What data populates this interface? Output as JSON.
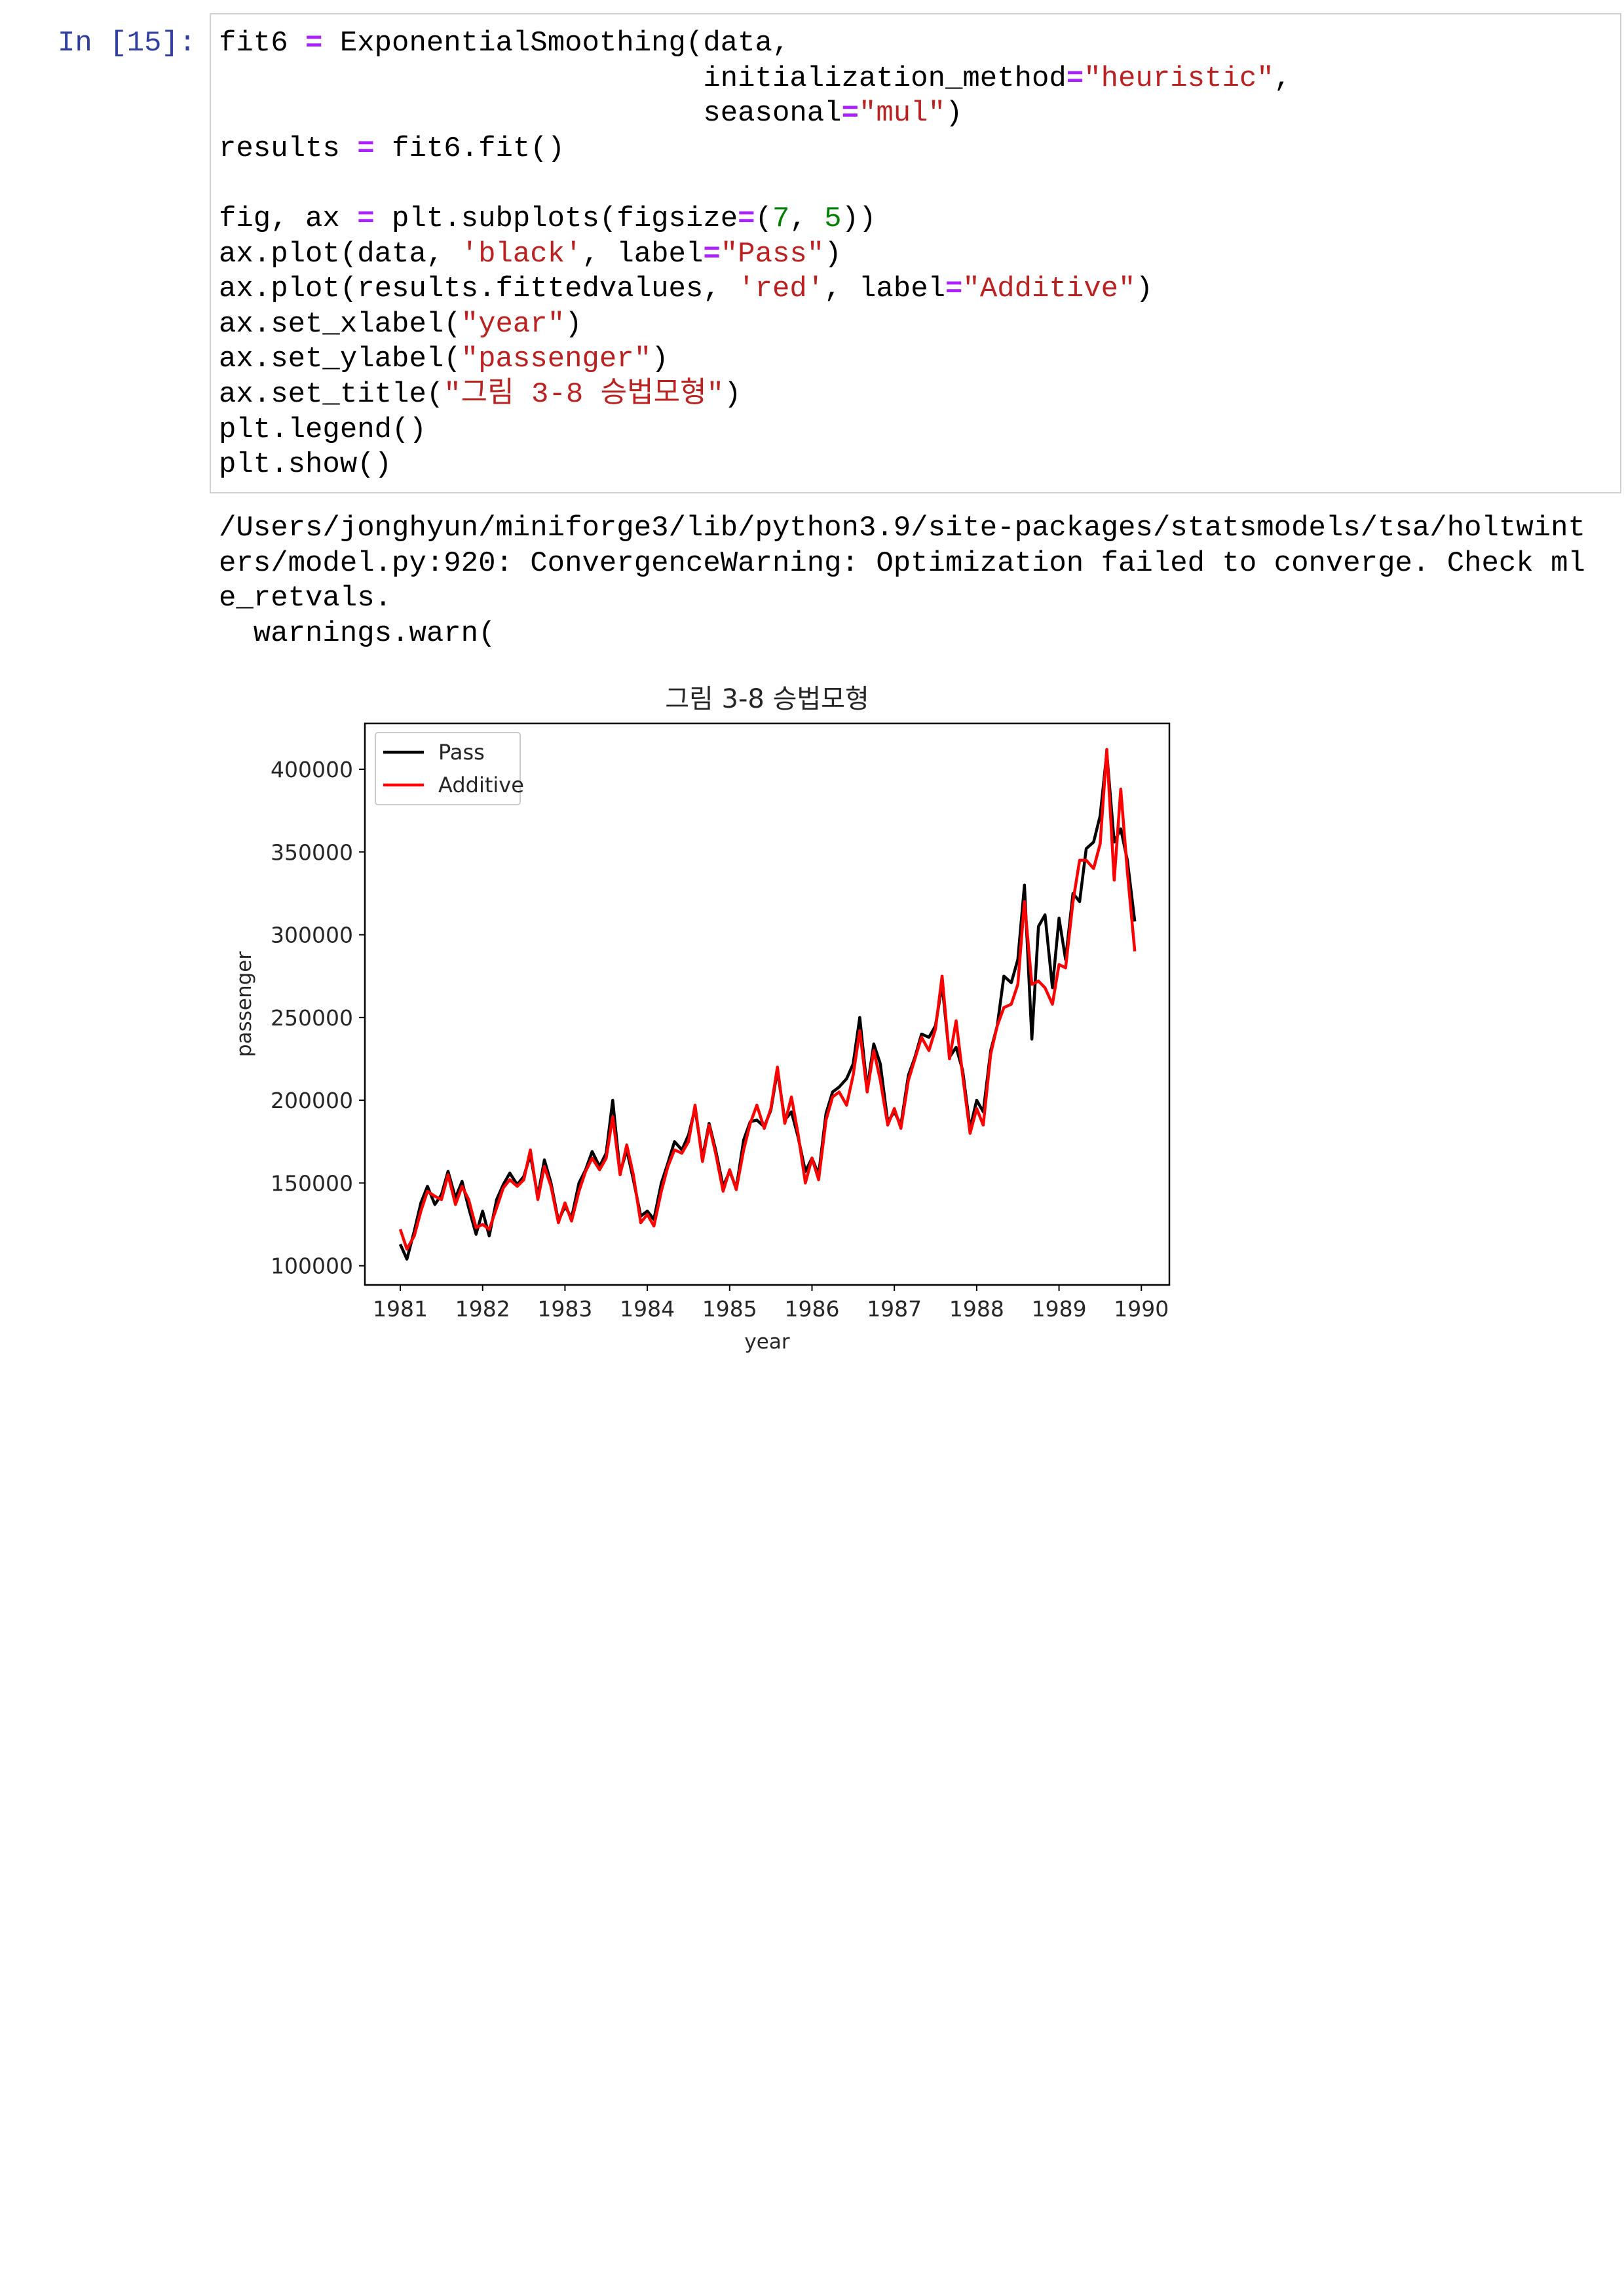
{
  "cell": {
    "prompt": "In [15]:",
    "lines": [
      [
        [
          "fit6 ",
          "#000000"
        ],
        [
          "=",
          "#aa22ff"
        ],
        [
          " ExponentialSmoothing(data,",
          "#000000"
        ]
      ],
      [
        [
          "                            initialization_method",
          "#000000"
        ],
        [
          "=",
          "#aa22ff"
        ],
        [
          "\"heuristic\"",
          "#ba2121"
        ],
        [
          ",",
          "#000000"
        ]
      ],
      [
        [
          "                            seasonal",
          "#000000"
        ],
        [
          "=",
          "#aa22ff"
        ],
        [
          "\"mul\"",
          "#ba2121"
        ],
        [
          ")",
          "#000000"
        ]
      ],
      [
        [
          "results ",
          "#000000"
        ],
        [
          "=",
          "#aa22ff"
        ],
        [
          " fit6.fit()",
          "#000000"
        ]
      ],
      [],
      [
        [
          "fig, ax ",
          "#000000"
        ],
        [
          "=",
          "#aa22ff"
        ],
        [
          " plt.subplots(figsize",
          "#000000"
        ],
        [
          "=",
          "#aa22ff"
        ],
        [
          "(",
          "#000000"
        ],
        [
          "7",
          "#008000"
        ],
        [
          ", ",
          "#000000"
        ],
        [
          "5",
          "#008000"
        ],
        [
          "))",
          "#000000"
        ]
      ],
      [
        [
          "ax.plot(data, ",
          "#000000"
        ],
        [
          "'black'",
          "#ba2121"
        ],
        [
          ", label",
          "#000000"
        ],
        [
          "=",
          "#aa22ff"
        ],
        [
          "\"Pass\"",
          "#ba2121"
        ],
        [
          ")",
          "#000000"
        ]
      ],
      [
        [
          "ax.plot(results.fittedvalues, ",
          "#000000"
        ],
        [
          "'red'",
          "#ba2121"
        ],
        [
          ", label",
          "#000000"
        ],
        [
          "=",
          "#aa22ff"
        ],
        [
          "\"Additive\"",
          "#ba2121"
        ],
        [
          ")",
          "#000000"
        ]
      ],
      [
        [
          "ax.set_xlabel(",
          "#000000"
        ],
        [
          "\"year\"",
          "#ba2121"
        ],
        [
          ")",
          "#000000"
        ]
      ],
      [
        [
          "ax.set_ylabel(",
          "#000000"
        ],
        [
          "\"passenger\"",
          "#ba2121"
        ],
        [
          ")",
          "#000000"
        ]
      ],
      [
        [
          "ax.set_title(",
          "#000000"
        ],
        [
          "\"그림 3-8 승법모형\"",
          "#ba2121"
        ],
        [
          ")",
          "#000000"
        ]
      ],
      [
        [
          "plt.legend()",
          "#000000"
        ]
      ],
      [
        [
          "plt.show()",
          "#000000"
        ]
      ]
    ]
  },
  "output": {
    "lines": [
      "/Users/jonghyun/miniforge3/lib/python3.9/site-packages/statsmodels/tsa/holtwint",
      "ers/model.py:920: ConvergenceWarning: Optimization failed to converge. Check ml",
      "e_retvals.",
      "  warnings.warn("
    ]
  },
  "chart_data": {
    "type": "line",
    "title": "그림 3-8 승법모형",
    "xlabel": "year",
    "ylabel": "passenger",
    "x": [
      1981,
      1981.08,
      1981.17,
      1981.25,
      1981.33,
      1981.42,
      1981.5,
      1981.58,
      1981.67,
      1981.75,
      1981.83,
      1981.92,
      1982,
      1982.08,
      1982.17,
      1982.25,
      1982.33,
      1982.42,
      1982.5,
      1982.58,
      1982.67,
      1982.75,
      1982.83,
      1982.92,
      1983,
      1983.08,
      1983.17,
      1983.25,
      1983.33,
      1983.42,
      1983.5,
      1983.58,
      1983.67,
      1983.75,
      1983.83,
      1983.92,
      1984,
      1984.08,
      1984.17,
      1984.25,
      1984.33,
      1984.42,
      1984.5,
      1984.58,
      1984.67,
      1984.75,
      1984.83,
      1984.92,
      1985,
      1985.08,
      1985.17,
      1985.25,
      1985.33,
      1985.42,
      1985.5,
      1985.58,
      1985.67,
      1985.75,
      1985.83,
      1985.92,
      1986,
      1986.08,
      1986.17,
      1986.25,
      1986.33,
      1986.42,
      1986.5,
      1986.58,
      1986.67,
      1986.75,
      1986.83,
      1986.92,
      1987,
      1987.08,
      1987.17,
      1987.25,
      1987.33,
      1987.42,
      1987.5,
      1987.58,
      1987.67,
      1987.75,
      1987.83,
      1987.92,
      1988,
      1988.08,
      1988.17,
      1988.25,
      1988.33,
      1988.42,
      1988.5,
      1988.58,
      1988.67,
      1988.75,
      1988.83,
      1988.92,
      1989,
      1989.08,
      1989.17,
      1989.25,
      1989.33,
      1989.42,
      1989.5,
      1989.58,
      1989.67,
      1989.75,
      1989.83,
      1989.92
    ],
    "series": [
      {
        "name": "Pass",
        "color": "#000000",
        "values": [
          113000,
          104000,
          121000,
          138000,
          148000,
          137000,
          143000,
          157000,
          141000,
          151000,
          135000,
          119000,
          133000,
          118000,
          140000,
          149000,
          156000,
          149000,
          154000,
          167000,
          142000,
          164000,
          150000,
          127000,
          136000,
          129000,
          150000,
          158000,
          169000,
          160000,
          168000,
          200000,
          156000,
          170000,
          152000,
          130000,
          133000,
          128000,
          150000,
          162000,
          175000,
          170000,
          179000,
          195000,
          165000,
          186000,
          170000,
          148000,
          157000,
          147000,
          176000,
          187000,
          188000,
          184000,
          194000,
          218000,
          188000,
          193000,
          178000,
          157000,
          165000,
          155000,
          192000,
          205000,
          208000,
          213000,
          222000,
          250000,
          207000,
          234000,
          222000,
          187000,
          193000,
          185000,
          215000,
          226000,
          240000,
          238000,
          245000,
          270000,
          226000,
          232000,
          218000,
          183000,
          200000,
          193000,
          230000,
          245000,
          275000,
          271000,
          285000,
          330000,
          237000,
          305000,
          312000,
          268000,
          310000,
          285000,
          325000,
          320000,
          352000,
          356000,
          372000,
          410000,
          356000,
          364000,
          345000,
          308000
        ]
      },
      {
        "name": "Additive",
        "color": "#ff0000",
        "values": [
          122000,
          110000,
          118000,
          133000,
          145000,
          142000,
          140000,
          155000,
          137000,
          148000,
          140000,
          123000,
          125000,
          122000,
          135000,
          147000,
          152000,
          148000,
          152000,
          170000,
          140000,
          160000,
          148000,
          126000,
          138000,
          127000,
          145000,
          157000,
          165000,
          158000,
          165000,
          190000,
          155000,
          173000,
          155000,
          126000,
          131000,
          124000,
          145000,
          160000,
          170000,
          168000,
          175000,
          197000,
          163000,
          185000,
          168000,
          145000,
          158000,
          146000,
          170000,
          186000,
          197000,
          183000,
          195000,
          220000,
          186000,
          202000,
          180000,
          150000,
          165000,
          152000,
          188000,
          202000,
          205000,
          197000,
          215000,
          242000,
          205000,
          230000,
          212000,
          185000,
          195000,
          183000,
          212000,
          225000,
          238000,
          230000,
          243000,
          275000,
          225000,
          248000,
          215000,
          180000,
          195000,
          185000,
          228000,
          245000,
          256000,
          258000,
          270000,
          320000,
          270000,
          272000,
          268000,
          258000,
          282000,
          280000,
          320000,
          345000,
          345000,
          340000,
          355000,
          412000,
          333000,
          388000,
          338000,
          290000
        ]
      }
    ],
    "xlim": [
      1980.57,
      1990.34
    ],
    "xticks": [
      1981,
      1982,
      1983,
      1984,
      1985,
      1986,
      1987,
      1988,
      1989,
      1990
    ],
    "ylim": [
      88400,
      427700
    ],
    "yticks": [
      100000,
      150000,
      200000,
      250000,
      300000,
      350000,
      400000
    ],
    "grid": false,
    "legend": "upper left"
  }
}
